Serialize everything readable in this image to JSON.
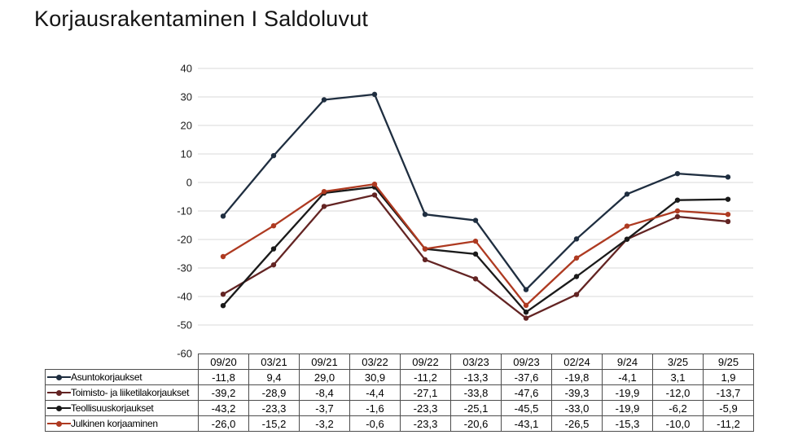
{
  "title": "Korjausrakentaminen I Saldoluvut",
  "colors": {
    "background": "#ffffff",
    "gridline": "#d9d9d9",
    "axis_text": "#1a1a1a",
    "table_border": "#4d4d4d"
  },
  "chart_data": {
    "type": "line",
    "title": "Korjausrakentaminen I Saldoluvut",
    "xlabel": "",
    "ylabel": "",
    "ylim": [
      -60,
      40
    ],
    "ytick_step": 10,
    "yticks": [
      40,
      30,
      20,
      10,
      0,
      -10,
      -20,
      -30,
      -40,
      -50,
      -60
    ],
    "grid": true,
    "legend_position": "data-table-left",
    "decimal_separator": ",",
    "categories": [
      "09/20",
      "03/21",
      "09/21",
      "03/22",
      "09/22",
      "03/23",
      "09/23",
      "02/24",
      "9/24",
      "3/25",
      "9/25"
    ],
    "series": [
      {
        "name": "Asuntokorjaukset",
        "color": "#1f2e40",
        "values": [
          -11.8,
          9.4,
          29.0,
          30.9,
          -11.2,
          -13.3,
          -37.6,
          -19.8,
          -4.1,
          3.1,
          1.9
        ]
      },
      {
        "name": "Toimisto- ja liiketilakorjaukset",
        "color": "#632423",
        "values": [
          -39.2,
          -28.9,
          -8.4,
          -4.4,
          -27.1,
          -33.8,
          -47.6,
          -39.3,
          -19.9,
          -12.0,
          -13.7
        ]
      },
      {
        "name": "Teollisuuskorjaukset",
        "color": "#1a1a1a",
        "values": [
          -43.2,
          -23.3,
          -3.7,
          -1.6,
          -23.3,
          -25.1,
          -45.5,
          -33.0,
          -19.9,
          -6.2,
          -5.9
        ]
      },
      {
        "name": "Julkinen korjaaminen",
        "color": "#ae3a21",
        "values": [
          -26.0,
          -15.2,
          -3.2,
          -0.6,
          -23.3,
          -20.6,
          -43.1,
          -26.5,
          -15.3,
          -10.0,
          -11.2
        ]
      }
    ]
  }
}
